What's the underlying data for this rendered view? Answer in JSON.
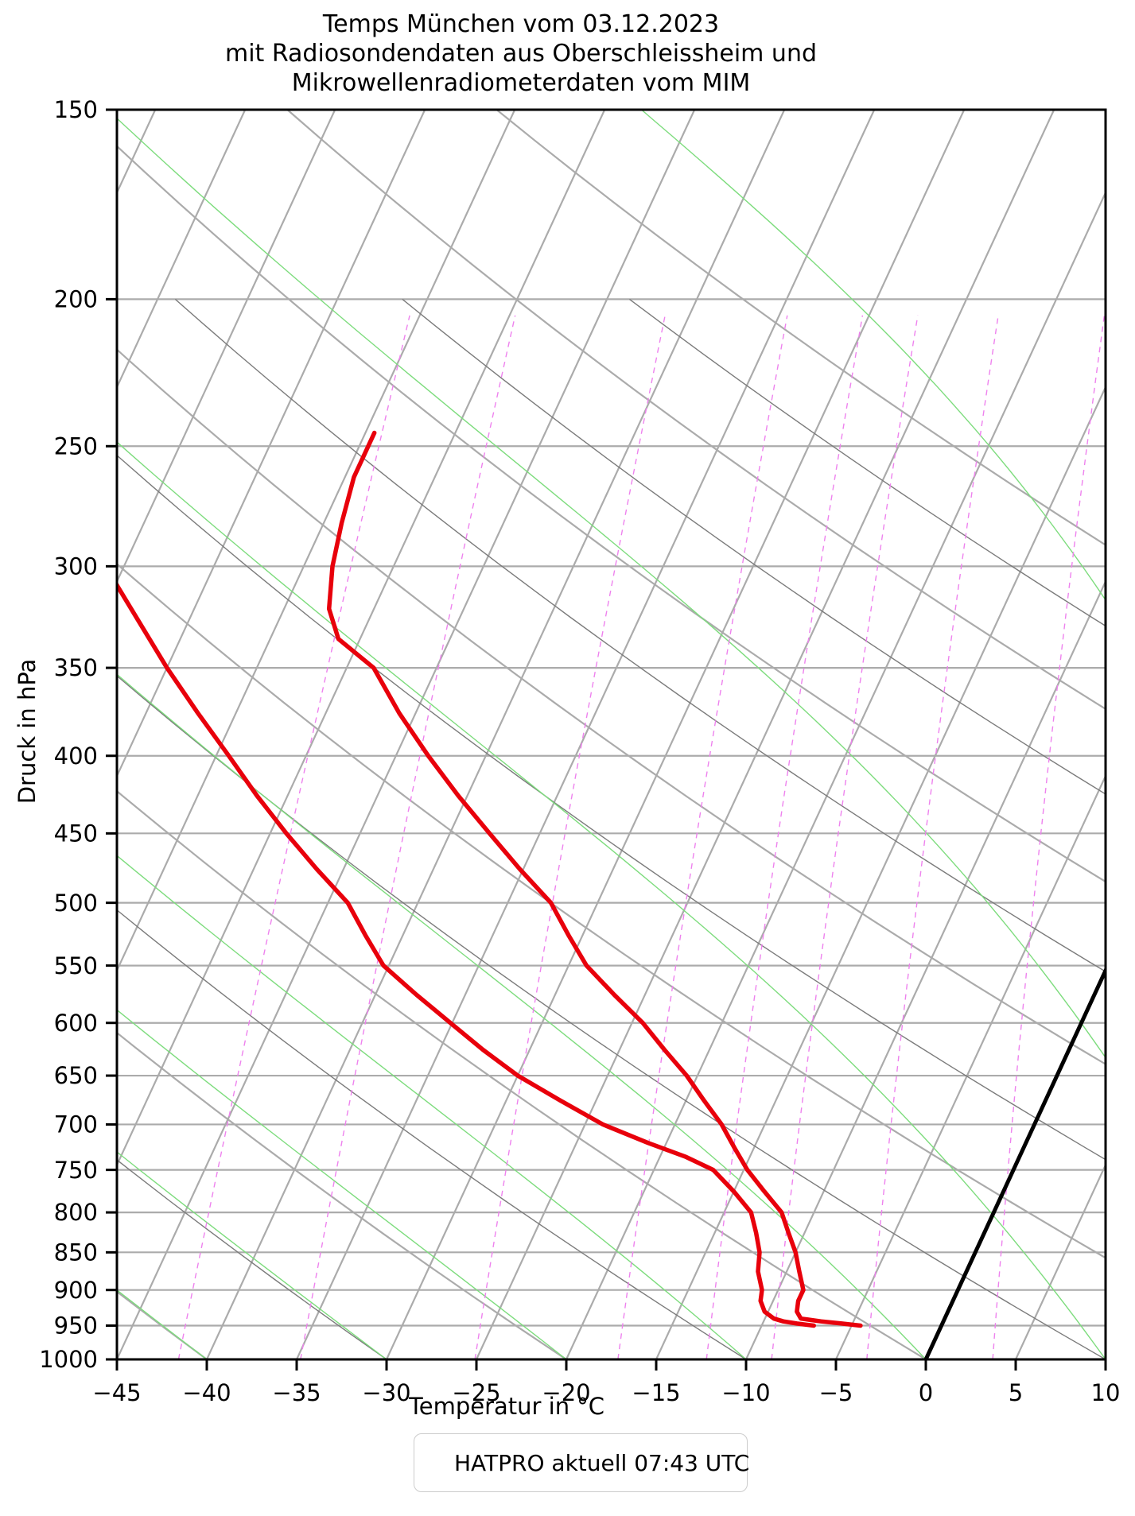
{
  "figure": {
    "title_lines": [
      "Temps München vom 03.12.2023",
      "mit Radiosondendaten aus Oberschleissheim und",
      "Mikrowellenradiometerdaten vom MIM"
    ],
    "xlabel": "Temperatur in °C",
    "ylabel": "Druck in hPa",
    "legend": {
      "label": "HATPRO aktuell 07:43 UTC",
      "line_color": "#e8000b",
      "border_color": "#cccccc"
    }
  },
  "chart_data": {
    "type": "line",
    "projection": "skew-T log-p",
    "title": "Temps München vom 03.12.2023 mit Radiosondendaten aus Oberschleissheim und Mikrowellenradiometerdaten vom MIM",
    "xlabel": "Temperatur in °C",
    "ylabel": "Druck in hPa",
    "x_axis": {
      "min": -45,
      "max": 10,
      "ticks": [
        -45,
        -40,
        -35,
        -30,
        -25,
        -20,
        -15,
        -10,
        -5,
        0,
        5,
        10
      ]
    },
    "y_axis": {
      "scale": "log",
      "top_hpa": 150,
      "bottom_hpa": 1000,
      "ticks": [
        150,
        200,
        250,
        300,
        350,
        400,
        450,
        500,
        550,
        600,
        650,
        700,
        750,
        800,
        850,
        900,
        950,
        1000
      ]
    },
    "skew_degC_per_decade": 39,
    "grid": {
      "isobars_hpa": [
        200,
        250,
        300,
        350,
        400,
        450,
        500,
        550,
        600,
        650,
        700,
        750,
        800,
        850,
        900,
        950
      ],
      "isobar_color": "#ababab",
      "isotherms": {
        "start": -80,
        "end": 10,
        "step": 5,
        "color": "#ababab"
      },
      "zero_isotherm": {
        "temp_degC": 0,
        "color": "#000000",
        "from_hpa": 1000,
        "to_hpa": 540
      },
      "dry_adiabats": {
        "theta_start": -70,
        "theta_end": 100,
        "theta_step": 10,
        "major_color": "#ababab",
        "minor_color": "#7b7b7b",
        "minor_top_hpa": 200
      },
      "moist_adiabats": {
        "thetaw_start": -60,
        "thetaw_end": 30,
        "thetaw_step": 10,
        "color": "#7ddc7d"
      },
      "mixing_ratio": {
        "values_g_per_kg": [
          0.1,
          0.2,
          0.5,
          1,
          1.5,
          2,
          3,
          5,
          8
        ],
        "color": "#ee82ee",
        "top_hpa": 205
      }
    },
    "series": [
      {
        "name": "HATPRO aktuell 07:43 UTC",
        "curve": "right (Temperatur)",
        "color": "#e8000b",
        "points_p_hpa_T_degC": [
          [
            245,
            -54.5
          ],
          [
            262,
            -54.5
          ],
          [
            281,
            -54.0
          ],
          [
            300,
            -53.4
          ],
          [
            320,
            -52.5
          ],
          [
            335,
            -51.2
          ],
          [
            350,
            -48.5
          ],
          [
            375,
            -45.9
          ],
          [
            400,
            -43.2
          ],
          [
            425,
            -40.5
          ],
          [
            450,
            -37.8
          ],
          [
            475,
            -35.2
          ],
          [
            500,
            -32.6
          ],
          [
            525,
            -30.8
          ],
          [
            550,
            -29.0
          ],
          [
            575,
            -26.7
          ],
          [
            600,
            -24.4
          ],
          [
            625,
            -22.5
          ],
          [
            650,
            -20.6
          ],
          [
            675,
            -19.0
          ],
          [
            700,
            -17.4
          ],
          [
            725,
            -16.1
          ],
          [
            750,
            -14.8
          ],
          [
            775,
            -13.3
          ],
          [
            800,
            -11.8
          ],
          [
            825,
            -10.9
          ],
          [
            850,
            -10.0
          ],
          [
            875,
            -9.3
          ],
          [
            900,
            -8.6
          ],
          [
            915,
            -8.6
          ],
          [
            930,
            -8.4
          ],
          [
            940,
            -8.0
          ],
          [
            944,
            -6.8
          ],
          [
            947,
            -5.6
          ],
          [
            950,
            -4.5
          ]
        ]
      },
      {
        "name": "HATPRO aktuell 07:43 UTC",
        "curve": "left (Feuchte/Taupunkt)",
        "color": "#e8000b",
        "points_p_hpa_T_degC": [
          [
            308,
            -65.0
          ],
          [
            325,
            -62.9
          ],
          [
            350,
            -60.0
          ],
          [
            375,
            -57.1
          ],
          [
            400,
            -54.3
          ],
          [
            425,
            -51.7
          ],
          [
            450,
            -49.1
          ],
          [
            475,
            -46.5
          ],
          [
            500,
            -43.9
          ],
          [
            525,
            -42.1
          ],
          [
            550,
            -40.3
          ],
          [
            575,
            -37.7
          ],
          [
            600,
            -35.1
          ],
          [
            625,
            -32.6
          ],
          [
            650,
            -30.0
          ],
          [
            675,
            -27.0
          ],
          [
            700,
            -24.0
          ],
          [
            720,
            -21.0
          ],
          [
            735,
            -18.6
          ],
          [
            750,
            -16.7
          ],
          [
            775,
            -15.0
          ],
          [
            800,
            -13.5
          ],
          [
            825,
            -12.7
          ],
          [
            850,
            -12.0
          ],
          [
            875,
            -11.6
          ],
          [
            900,
            -10.9
          ],
          [
            915,
            -10.7
          ],
          [
            930,
            -10.2
          ],
          [
            940,
            -9.5
          ],
          [
            944,
            -8.9
          ],
          [
            947,
            -8.1
          ],
          [
            950,
            -7.1
          ]
        ]
      }
    ],
    "legend": {
      "position": "bottom center",
      "entries": [
        "HATPRO aktuell 07:43 UTC"
      ]
    },
    "grid_on": true
  }
}
